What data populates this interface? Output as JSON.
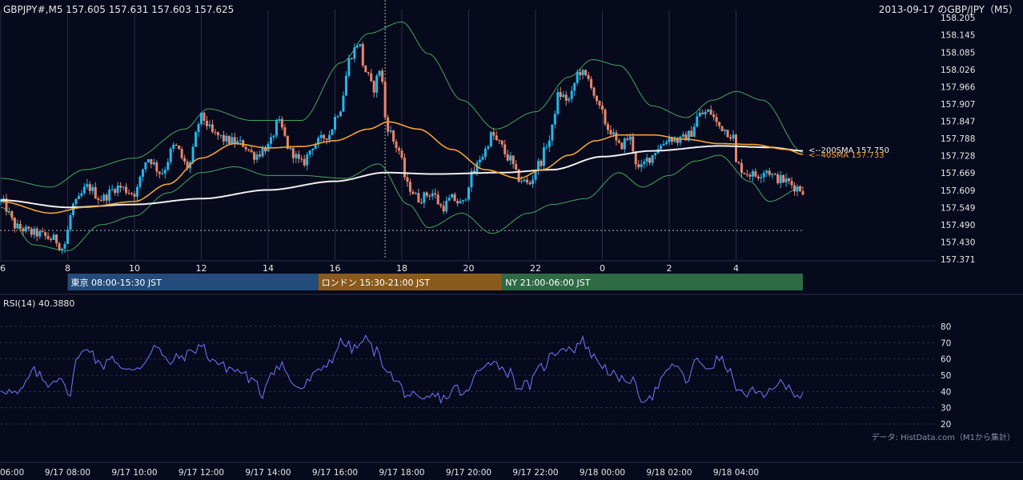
{
  "header": {
    "symbol_info": "GBPJPY#,M5 157.605 157.631 157.603 157.625",
    "title": "2013-09-17 のGBP/JPY（M5）"
  },
  "colors": {
    "background": "#070a1c",
    "grid": "#2a2f45",
    "bull": "#27b5e8",
    "bear": "#e8866b",
    "sma200": "#f0f0f0",
    "sma40": "#f2a234",
    "bollinger": "#3fa85c",
    "rsi": "#6f79ff",
    "tokyo": "#234b7b",
    "london": "#8a5a1c",
    "ny": "#2e6a44"
  },
  "sessions": [
    {
      "label": "東京 08:00-15:30 JST",
      "start": 8.0,
      "end": 15.5,
      "color": "#234b7b"
    },
    {
      "label": "ロンドン 15:30-21:00 JST",
      "start": 15.5,
      "end": 21.0,
      "color": "#8a5a1c"
    },
    {
      "label": "NY 21:00-06:00 JST",
      "start": 21.0,
      "end": 30.0,
      "color": "#2e6a44"
    }
  ],
  "rsi_label": "RSI(14) 40.3880",
  "source_note": "データ: HistData.com（M1から集計）",
  "chart_data": {
    "type": "candlestick",
    "x_range_hours": [
      6,
      30.35
    ],
    "price_axis": {
      "ylim": [
        157.371,
        158.205
      ],
      "ticks": [
        "158.205",
        "158.145",
        "158.085",
        "158.026",
        "157.966",
        "157.907",
        "157.847",
        "157.788",
        "157.728",
        "157.669",
        "157.609",
        "157.549",
        "157.490",
        "157.430",
        "157.371"
      ]
    },
    "top_x_ticks": [
      {
        "label": "6",
        "h": 6
      },
      {
        "label": "8",
        "h": 8
      },
      {
        "label": "10",
        "h": 10
      },
      {
        "label": "12",
        "h": 12
      },
      {
        "label": "14",
        "h": 14
      },
      {
        "label": "16",
        "h": 16
      },
      {
        "label": "18",
        "h": 18
      },
      {
        "label": "20",
        "h": 20
      },
      {
        "label": "22",
        "h": 22
      },
      {
        "label": "0",
        "h": 24
      },
      {
        "label": "2",
        "h": 26
      },
      {
        "label": "4",
        "h": 28
      }
    ],
    "bottom_x_ticks": [
      {
        "label": "06:00",
        "h": 6
      },
      {
        "label": "9/17 08:00",
        "h": 8
      },
      {
        "label": "9/17 10:00",
        "h": 10
      },
      {
        "label": "9/17 12:00",
        "h": 12
      },
      {
        "label": "9/17 14:00",
        "h": 14
      },
      {
        "label": "9/17 16:00",
        "h": 16
      },
      {
        "label": "9/17 18:00",
        "h": 18
      },
      {
        "label": "9/17 20:00",
        "h": 20
      },
      {
        "label": "9/17 22:00",
        "h": 22
      },
      {
        "label": "9/18 00:00",
        "h": 24
      },
      {
        "label": "9/18 02:00",
        "h": 26
      },
      {
        "label": "9/18 04:00",
        "h": 28
      }
    ],
    "close_anchors": [
      [
        6.0,
        157.57
      ],
      [
        6.5,
        157.48
      ],
      [
        7.0,
        157.46
      ],
      [
        7.6,
        157.44
      ],
      [
        7.85,
        157.41
      ],
      [
        8.2,
        157.56
      ],
      [
        8.6,
        157.62
      ],
      [
        9.0,
        157.58
      ],
      [
        9.5,
        157.62
      ],
      [
        10.0,
        157.6
      ],
      [
        10.4,
        157.72
      ],
      [
        10.8,
        157.67
      ],
      [
        11.2,
        157.76
      ],
      [
        11.6,
        157.69
      ],
      [
        12.0,
        157.86
      ],
      [
        12.4,
        157.8
      ],
      [
        12.8,
        157.78
      ],
      [
        13.2,
        157.77
      ],
      [
        13.6,
        157.73
      ],
      [
        14.0,
        157.76
      ],
      [
        14.3,
        157.84
      ],
      [
        14.7,
        157.74
      ],
      [
        15.0,
        157.7
      ],
      [
        15.4,
        157.77
      ],
      [
        15.8,
        157.8
      ],
      [
        16.1,
        157.88
      ],
      [
        16.5,
        158.08
      ],
      [
        16.7,
        158.12
      ],
      [
        16.9,
        158.02
      ],
      [
        17.15,
        157.96
      ],
      [
        17.35,
        158.03
      ],
      [
        17.55,
        157.83
      ],
      [
        17.85,
        157.76
      ],
      [
        18.2,
        157.62
      ],
      [
        18.5,
        157.58
      ],
      [
        18.9,
        157.6
      ],
      [
        19.2,
        157.55
      ],
      [
        19.5,
        157.58
      ],
      [
        19.8,
        157.56
      ],
      [
        20.1,
        157.66
      ],
      [
        20.4,
        157.73
      ],
      [
        20.7,
        157.8
      ],
      [
        20.9,
        157.77
      ],
      [
        21.2,
        157.72
      ],
      [
        21.5,
        157.65
      ],
      [
        21.8,
        157.63
      ],
      [
        22.1,
        157.7
      ],
      [
        22.4,
        157.78
      ],
      [
        22.7,
        157.94
      ],
      [
        23.0,
        157.92
      ],
      [
        23.3,
        158.02
      ],
      [
        23.6,
        157.99
      ],
      [
        23.9,
        157.89
      ],
      [
        24.2,
        157.82
      ],
      [
        24.5,
        157.76
      ],
      [
        24.8,
        157.79
      ],
      [
        25.1,
        157.68
      ],
      [
        25.4,
        157.72
      ],
      [
        25.7,
        157.76
      ],
      [
        26.0,
        157.79
      ],
      [
        26.3,
        157.78
      ],
      [
        26.6,
        157.8
      ],
      [
        26.9,
        157.87
      ],
      [
        27.2,
        157.88
      ],
      [
        27.5,
        157.83
      ],
      [
        27.9,
        157.8
      ],
      [
        28.0,
        157.7
      ],
      [
        28.3,
        157.67
      ],
      [
        28.6,
        157.66
      ],
      [
        28.9,
        157.68
      ],
      [
        29.2,
        157.65
      ],
      [
        29.5,
        157.64
      ],
      [
        29.8,
        157.62
      ],
      [
        30.0,
        157.61
      ]
    ],
    "sma200": {
      "label": "<--200SMA 157.750",
      "points": [
        [
          6.0,
          157.575
        ],
        [
          8.0,
          157.55
        ],
        [
          10.0,
          157.56
        ],
        [
          12.0,
          157.58
        ],
        [
          14.0,
          157.61
        ],
        [
          16.0,
          157.64
        ],
        [
          17.5,
          157.67
        ],
        [
          19.0,
          157.665
        ],
        [
          21.0,
          157.67
        ],
        [
          22.5,
          157.68
        ],
        [
          24.0,
          157.725
        ],
        [
          25.5,
          157.745
        ],
        [
          27.5,
          157.762
        ],
        [
          29.0,
          157.757
        ],
        [
          30.0,
          157.745
        ]
      ]
    },
    "sma40": {
      "label": "<--40SMA 157.733",
      "points": [
        [
          6.0,
          157.57
        ],
        [
          7.5,
          157.53
        ],
        [
          8.5,
          157.55
        ],
        [
          10.0,
          157.57
        ],
        [
          11.0,
          157.63
        ],
        [
          12.0,
          157.72
        ],
        [
          13.0,
          157.77
        ],
        [
          14.0,
          157.755
        ],
        [
          15.0,
          157.76
        ],
        [
          16.0,
          157.78
        ],
        [
          17.0,
          157.82
        ],
        [
          17.6,
          157.845
        ],
        [
          18.5,
          157.82
        ],
        [
          19.5,
          157.75
        ],
        [
          20.5,
          157.68
        ],
        [
          21.5,
          157.65
        ],
        [
          22.2,
          157.68
        ],
        [
          23.0,
          157.73
        ],
        [
          23.8,
          157.78
        ],
        [
          24.5,
          157.8
        ],
        [
          25.5,
          157.8
        ],
        [
          26.5,
          157.785
        ],
        [
          27.5,
          157.77
        ],
        [
          28.5,
          157.767
        ],
        [
          29.5,
          157.75
        ],
        [
          30.0,
          157.733
        ]
      ]
    },
    "bb_upper": [
      [
        6.0,
        157.65
      ],
      [
        7.5,
        157.62
      ],
      [
        8.5,
        157.68
      ],
      [
        10.0,
        157.72
      ],
      [
        11.5,
        157.82
      ],
      [
        12.2,
        157.89
      ],
      [
        13.5,
        157.85
      ],
      [
        15.0,
        157.85
      ],
      [
        16.2,
        158.05
      ],
      [
        17.0,
        158.15
      ],
      [
        18.0,
        158.19
      ],
      [
        18.8,
        158.08
      ],
      [
        19.8,
        157.92
      ],
      [
        20.8,
        157.82
      ],
      [
        22.0,
        157.88
      ],
      [
        23.0,
        158.0
      ],
      [
        23.7,
        158.06
      ],
      [
        24.5,
        158.04
      ],
      [
        25.5,
        157.9
      ],
      [
        26.5,
        157.86
      ],
      [
        27.3,
        157.92
      ],
      [
        28.0,
        157.95
      ],
      [
        28.8,
        157.92
      ],
      [
        30.0,
        157.74
      ]
    ],
    "bb_lower": [
      [
        6.0,
        157.55
      ],
      [
        7.0,
        157.42
      ],
      [
        8.0,
        157.4
      ],
      [
        9.0,
        157.49
      ],
      [
        10.0,
        157.52
      ],
      [
        11.0,
        157.6
      ],
      [
        12.0,
        157.67
      ],
      [
        13.0,
        157.69
      ],
      [
        14.0,
        157.66
      ],
      [
        15.0,
        157.66
      ],
      [
        16.3,
        157.65
      ],
      [
        17.3,
        157.7
      ],
      [
        18.2,
        157.56
      ],
      [
        18.8,
        157.48
      ],
      [
        19.8,
        157.53
      ],
      [
        20.7,
        157.46
      ],
      [
        21.8,
        157.53
      ],
      [
        22.5,
        157.56
      ],
      [
        23.5,
        157.58
      ],
      [
        24.5,
        157.67
      ],
      [
        25.2,
        157.62
      ],
      [
        26.0,
        157.66
      ],
      [
        26.8,
        157.71
      ],
      [
        27.5,
        157.73
      ],
      [
        28.4,
        157.64
      ],
      [
        29.0,
        157.57
      ],
      [
        30.0,
        157.62
      ]
    ],
    "rsi": {
      "label": "RSI(14) 40.3880",
      "ylim": [
        20,
        80
      ],
      "ticks": [
        80,
        70,
        60,
        50,
        40,
        30,
        20
      ],
      "anchors": [
        [
          6.0,
          42
        ],
        [
          6.5,
          38
        ],
        [
          7.0,
          52
        ],
        [
          7.4,
          45
        ],
        [
          7.8,
          50
        ],
        [
          8.0,
          36
        ],
        [
          8.3,
          60
        ],
        [
          8.6,
          68
        ],
        [
          9.0,
          55
        ],
        [
          9.3,
          62
        ],
        [
          9.7,
          52
        ],
        [
          10.2,
          56
        ],
        [
          10.6,
          68
        ],
        [
          11.0,
          58
        ],
        [
          11.5,
          62
        ],
        [
          12.0,
          68
        ],
        [
          12.3,
          60
        ],
        [
          12.7,
          55
        ],
        [
          13.2,
          52
        ],
        [
          13.6,
          45
        ],
        [
          13.8,
          38
        ],
        [
          14.1,
          53
        ],
        [
          14.4,
          57
        ],
        [
          14.7,
          45
        ],
        [
          15.0,
          42
        ],
        [
          15.4,
          50
        ],
        [
          15.8,
          58
        ],
        [
          16.2,
          70
        ],
        [
          16.6,
          66
        ],
        [
          16.9,
          72
        ],
        [
          17.2,
          65
        ],
        [
          17.5,
          56
        ],
        [
          17.8,
          46
        ],
        [
          18.2,
          38
        ],
        [
          18.6,
          33
        ],
        [
          18.9,
          37
        ],
        [
          19.3,
          36
        ],
        [
          19.6,
          42
        ],
        [
          19.9,
          38
        ],
        [
          20.3,
          52
        ],
        [
          20.6,
          60
        ],
        [
          20.9,
          56
        ],
        [
          21.2,
          52
        ],
        [
          21.5,
          43
        ],
        [
          21.8,
          44
        ],
        [
          22.2,
          55
        ],
        [
          22.5,
          62
        ],
        [
          22.8,
          68
        ],
        [
          23.1,
          66
        ],
        [
          23.4,
          71
        ],
        [
          23.8,
          60
        ],
        [
          24.2,
          53
        ],
        [
          24.5,
          46
        ],
        [
          24.8,
          48
        ],
        [
          25.2,
          36
        ],
        [
          25.5,
          38
        ],
        [
          25.8,
          48
        ],
        [
          26.2,
          57
        ],
        [
          26.5,
          46
        ],
        [
          26.8,
          58
        ],
        [
          27.2,
          55
        ],
        [
          27.5,
          60
        ],
        [
          27.9,
          50
        ],
        [
          28.1,
          38
        ],
        [
          28.5,
          40
        ],
        [
          28.8,
          36
        ],
        [
          29.2,
          45
        ],
        [
          29.6,
          42
        ],
        [
          29.9,
          38
        ],
        [
          30.0,
          40
        ]
      ]
    }
  }
}
